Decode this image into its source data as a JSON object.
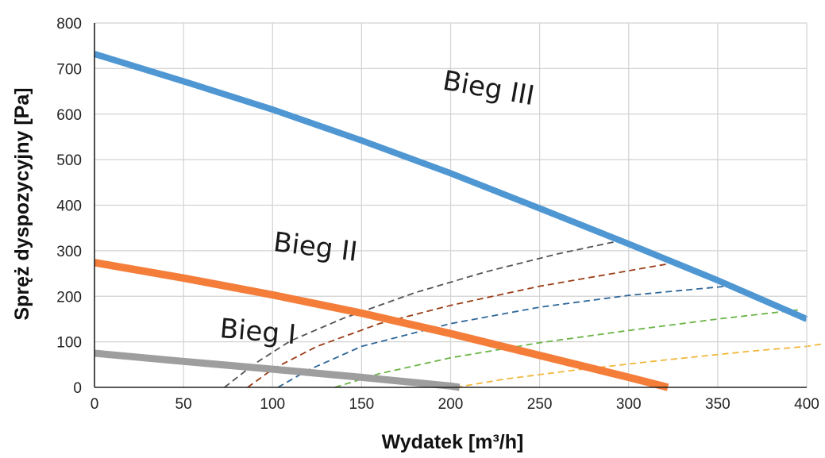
{
  "chart_data": {
    "type": "line",
    "title": "",
    "xlabel": "Wydatek [m³/h]",
    "ylabel": "Spręż dyspozycyjny [Pa]",
    "xlim": [
      0,
      400
    ],
    "ylim": [
      0,
      800
    ],
    "x_ticks": [
      "0",
      "50",
      "100",
      "150",
      "200",
      "250",
      "300",
      "350",
      "400"
    ],
    "y_ticks": [
      "0",
      "100",
      "200",
      "300",
      "400",
      "500",
      "600",
      "700",
      "800"
    ],
    "grid": true,
    "series": [
      {
        "name": "Bieg III",
        "color": "#4f97d3",
        "style": "solid",
        "points": [
          [
            0,
            732
          ],
          [
            50,
            672
          ],
          [
            100,
            610
          ],
          [
            150,
            542
          ],
          [
            200,
            470
          ],
          [
            250,
            393
          ],
          [
            300,
            315
          ],
          [
            350,
            235
          ],
          [
            400,
            150
          ]
        ]
      },
      {
        "name": "Bieg II",
        "color": "#f47d3a",
        "style": "solid",
        "points": [
          [
            0,
            274
          ],
          [
            50,
            240
          ],
          [
            100,
            203
          ],
          [
            150,
            163
          ],
          [
            200,
            118
          ],
          [
            250,
            70
          ],
          [
            300,
            22
          ],
          [
            322,
            0
          ]
        ]
      },
      {
        "name": "Bieg I",
        "color": "#9e9e9e",
        "style": "solid",
        "points": [
          [
            0,
            75
          ],
          [
            50,
            57
          ],
          [
            100,
            40
          ],
          [
            150,
            22
          ],
          [
            200,
            3
          ],
          [
            205,
            0
          ]
        ]
      }
    ],
    "system_curves": [
      {
        "color": "#555555",
        "style": "dashed",
        "points": [
          [
            73,
            0
          ],
          [
            90,
            52
          ],
          [
            110,
            102
          ],
          [
            140,
            152
          ],
          [
            180,
            208
          ],
          [
            220,
            254
          ],
          [
            260,
            293
          ],
          [
            295,
            322
          ]
        ]
      },
      {
        "color": "#9a3d16",
        "style": "dashed",
        "points": [
          [
            86,
            0
          ],
          [
            100,
            40
          ],
          [
            125,
            90
          ],
          [
            160,
            140
          ],
          [
            200,
            180
          ],
          [
            250,
            222
          ],
          [
            300,
            256
          ],
          [
            322,
            271
          ]
        ]
      },
      {
        "color": "#2e6799",
        "style": "dashed",
        "points": [
          [
            103,
            0
          ],
          [
            120,
            38
          ],
          [
            150,
            90
          ],
          [
            200,
            140
          ],
          [
            250,
            176
          ],
          [
            300,
            202
          ],
          [
            355,
            222
          ]
        ]
      },
      {
        "color": "#6ab444",
        "style": "dashed",
        "points": [
          [
            135,
            0
          ],
          [
            160,
            30
          ],
          [
            200,
            65
          ],
          [
            250,
            98
          ],
          [
            300,
            125
          ],
          [
            350,
            150
          ],
          [
            395,
            170
          ]
        ]
      },
      {
        "color": "#f1b73a",
        "style": "dashed",
        "points": [
          [
            203,
            0
          ],
          [
            230,
            18
          ],
          [
            270,
            38
          ],
          [
            320,
            60
          ],
          [
            370,
            80
          ],
          [
            400,
            90
          ],
          [
            410,
            96
          ]
        ]
      }
    ],
    "annotations": [
      {
        "text": "Bieg III",
        "x": 195,
        "y": 655
      },
      {
        "text": "Bieg II",
        "x": 100,
        "y": 300
      },
      {
        "text": "Bieg I",
        "x": 70,
        "y": 110
      }
    ]
  }
}
